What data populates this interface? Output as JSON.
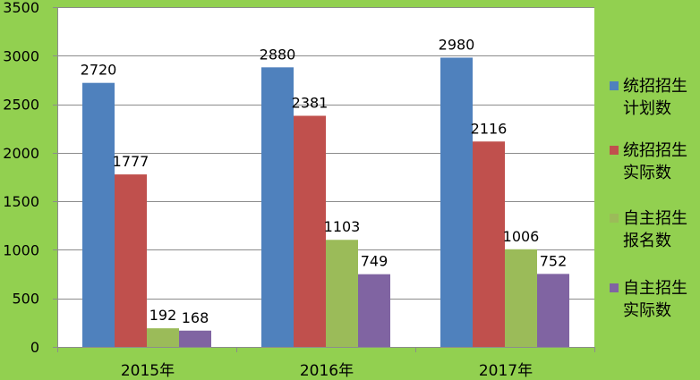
{
  "colors": {
    "background": "#92D050",
    "plot_area": "#FFFFFF",
    "gridline": "#8C8C8C",
    "axis": "#8C8C8C",
    "text": "#000000"
  },
  "chart_data": {
    "type": "bar",
    "title": "",
    "xlabel": "",
    "ylabel": "",
    "categories": [
      "2015年",
      "2016年",
      "2017年"
    ],
    "ylim": [
      0,
      3500
    ],
    "yticks": [
      0,
      500,
      1000,
      1500,
      2000,
      2500,
      3000,
      3500
    ],
    "grid": true,
    "legend_position": "right",
    "data_labels": true,
    "series": [
      {
        "name": "统招招生计划数",
        "legend_lines": [
          "统招招生",
          "计划数"
        ],
        "values": [
          2720,
          2880,
          2980
        ],
        "color": "#4F81BD",
        "icon": "blue-square-icon"
      },
      {
        "name": "统招招生实际数",
        "legend_lines": [
          "统招招生",
          "实际数"
        ],
        "values": [
          1777,
          2381,
          2116
        ],
        "color": "#C0504D",
        "icon": "red-square-icon"
      },
      {
        "name": "自主招生报名数",
        "legend_lines": [
          "自主招生",
          "报名数"
        ],
        "values": [
          192,
          1103,
          1006
        ],
        "color": "#9BBB59",
        "icon": "green-square-icon"
      },
      {
        "name": "自主招生实际数",
        "legend_lines": [
          "自主招生",
          "实际数"
        ],
        "values": [
          168,
          749,
          752
        ],
        "color": "#8064A2",
        "icon": "purple-square-icon"
      }
    ]
  }
}
